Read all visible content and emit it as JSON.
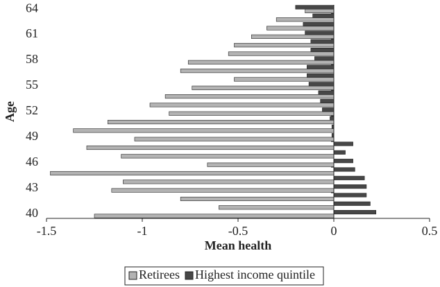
{
  "chart_data": {
    "type": "bar",
    "orientation": "horizontal",
    "x_label": "Mean health",
    "y_label": "Age",
    "categories": [
      "40",
      null,
      null,
      "43",
      null,
      null,
      "46",
      null,
      null,
      "49",
      null,
      null,
      "52",
      null,
      null,
      "55",
      null,
      null,
      "58",
      null,
      null,
      "61",
      null,
      null,
      "64"
    ],
    "series": [
      {
        "name": "Retirees",
        "color": "#b3b3b3",
        "values": [
          -1.25,
          -0.6,
          -0.8,
          -1.16,
          -1.1,
          -1.48,
          -0.66,
          -1.11,
          -1.29,
          -1.04,
          -1.36,
          -1.18,
          -0.86,
          -0.96,
          -0.88,
          -0.74,
          -0.52,
          -0.8,
          -0.76,
          -0.55,
          -0.52,
          -0.43,
          -0.35,
          -0.3,
          -0.15
        ]
      },
      {
        "name": "Highest income quintile",
        "color": "#474747",
        "values": [
          0.22,
          0.19,
          0.17,
          0.17,
          0.16,
          0.11,
          0.1,
          0.06,
          0.1,
          -0.01,
          -0.01,
          -0.02,
          -0.06,
          -0.07,
          -0.08,
          -0.13,
          -0.14,
          -0.14,
          -0.1,
          -0.12,
          -0.12,
          -0.15,
          -0.16,
          -0.11,
          -0.2
        ]
      }
    ],
    "xlim": [
      -1.5,
      0.5
    ],
    "xticks": [
      -1.5,
      -1,
      -0.5,
      0,
      0.5
    ],
    "legend": "bottom"
  }
}
